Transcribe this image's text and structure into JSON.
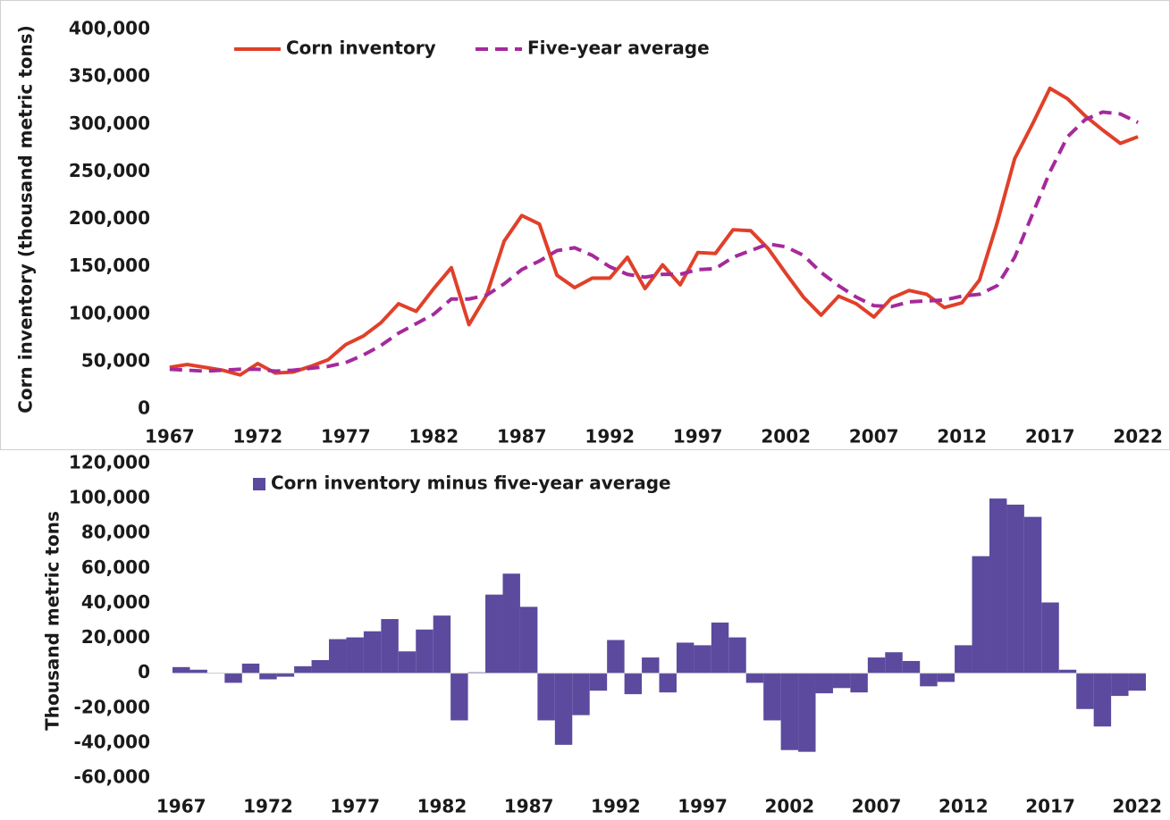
{
  "chart_data": [
    {
      "type": "line",
      "y_label": "Corn inventory (thousand metric tons)",
      "x": [
        1967,
        1968,
        1969,
        1970,
        1971,
        1972,
        1973,
        1974,
        1975,
        1976,
        1977,
        1978,
        1979,
        1980,
        1981,
        1982,
        1983,
        1984,
        1985,
        1986,
        1987,
        1988,
        1989,
        1990,
        1991,
        1992,
        1993,
        1994,
        1995,
        1996,
        1997,
        1998,
        1999,
        2000,
        2001,
        2002,
        2003,
        2004,
        2005,
        2006,
        2007,
        2008,
        2009,
        2010,
        2011,
        2012,
        2013,
        2014,
        2015,
        2016,
        2017,
        2018,
        2019,
        2020,
        2021,
        2022
      ],
      "series": [
        {
          "name": "Corn inventory",
          "color": "#e0402a",
          "dash": false,
          "values": [
            44000,
            47000,
            44000,
            41000,
            36000,
            48000,
            38000,
            39000,
            45000,
            52000,
            68000,
            77000,
            91000,
            111000,
            103000,
            127000,
            149000,
            89000,
            120000,
            177000,
            204000,
            195000,
            141000,
            128000,
            138000,
            138000,
            160000,
            127000,
            152000,
            131000,
            165000,
            164000,
            189000,
            188000,
            169000,
            143000,
            118000,
            99000,
            119000,
            111000,
            97000,
            117000,
            125000,
            121000,
            107000,
            112000,
            136000,
            196000,
            264000,
            300000,
            338000,
            327000,
            309000,
            294000,
            280000,
            287000
          ]
        },
        {
          "name": "Five-year average",
          "color": "#a52a9a",
          "dash": true,
          "values": [
            42000,
            41000,
            40000,
            41000,
            42000,
            42000,
            40000,
            41000,
            43000,
            45000,
            49000,
            57000,
            67000,
            80000,
            90000,
            100000,
            116000,
            116000,
            120000,
            132000,
            147000,
            156000,
            167000,
            170000,
            162000,
            150000,
            142000,
            139000,
            142000,
            142000,
            147000,
            148000,
            160000,
            167000,
            174000,
            171000,
            162000,
            144000,
            130000,
            118000,
            109000,
            108000,
            113000,
            114000,
            115000,
            119000,
            121000,
            130000,
            160000,
            205000,
            250000,
            287000,
            305000,
            313000,
            311000,
            302000
          ]
        }
      ],
      "xlim": [
        1966.5,
        2022.5
      ],
      "xticks": [
        1967,
        1972,
        1977,
        1982,
        1987,
        1992,
        1997,
        2002,
        2007,
        2012,
        2017,
        2022
      ],
      "ylim": [
        0,
        400000
      ],
      "yticks": [
        0,
        {
          "value": 50000,
          "label": "50,000"
        },
        {
          "value": 100000,
          "label": "100,000"
        },
        {
          "value": 150000,
          "label": "150,000"
        },
        {
          "value": 200000,
          "label": "200,000"
        },
        {
          "value": 250000,
          "label": "250,000"
        },
        {
          "value": 300000,
          "label": "300,000"
        },
        {
          "value": 350000,
          "label": "350,000"
        },
        {
          "value": 400000,
          "label": "400,000"
        }
      ],
      "legend": "top-left",
      "grid": false
    },
    {
      "type": "bar",
      "y_label": "Thousand metric tons",
      "x": [
        1967,
        1968,
        1969,
        1970,
        1971,
        1972,
        1973,
        1974,
        1975,
        1976,
        1977,
        1978,
        1979,
        1980,
        1981,
        1982,
        1983,
        1984,
        1985,
        1986,
        1987,
        1988,
        1989,
        1990,
        1991,
        1992,
        1993,
        1994,
        1995,
        1996,
        1997,
        1998,
        1999,
        2000,
        2001,
        2002,
        2003,
        2004,
        2005,
        2006,
        2007,
        2008,
        2009,
        2010,
        2011,
        2012,
        2013,
        2014,
        2015,
        2016,
        2017,
        2018,
        2019,
        2020,
        2021,
        2022
      ],
      "series": [
        {
          "name": "Corn inventory minus five-year average",
          "color": "#5b4a9e",
          "values": [
            3500,
            2000,
            0,
            -5500,
            5500,
            -3500,
            -2000,
            4000,
            7500,
            19500,
            20500,
            24000,
            31000,
            12500,
            25000,
            33000,
            -27000,
            500,
            45000,
            57000,
            38000,
            -27000,
            -41000,
            -24000,
            -10000,
            19000,
            -12000,
            9000,
            -11000,
            17500,
            16000,
            29000,
            20500,
            -5500,
            -27000,
            -44000,
            -45000,
            -11500,
            -8500,
            -11000,
            9000,
            12000,
            7000,
            -7500,
            -5000,
            16000,
            67000,
            100000,
            96500,
            89500,
            40500,
            2000,
            -20500,
            -30500,
            -13000,
            -10000
          ]
        }
      ],
      "xlim": [
        1966.5,
        2022.5
      ],
      "xticks": [
        1967,
        1972,
        1977,
        1982,
        1987,
        1992,
        1997,
        2002,
        2007,
        2012,
        2017,
        2022
      ],
      "ylim": [
        -60000,
        120000
      ],
      "yticks": [
        {
          "value": -60000,
          "label": "-60,000"
        },
        {
          "value": -40000,
          "label": "-40,000"
        },
        {
          "value": -20000,
          "label": "-20,000"
        },
        0,
        {
          "value": 20000,
          "label": "20,000"
        },
        {
          "value": 40000,
          "label": "40,000"
        },
        {
          "value": 60000,
          "label": "60,000"
        },
        {
          "value": 80000,
          "label": "80,000"
        },
        {
          "value": 100000,
          "label": "100,000"
        },
        {
          "value": 120000,
          "label": "120,000"
        }
      ],
      "legend": "top-left",
      "grid": false
    }
  ]
}
